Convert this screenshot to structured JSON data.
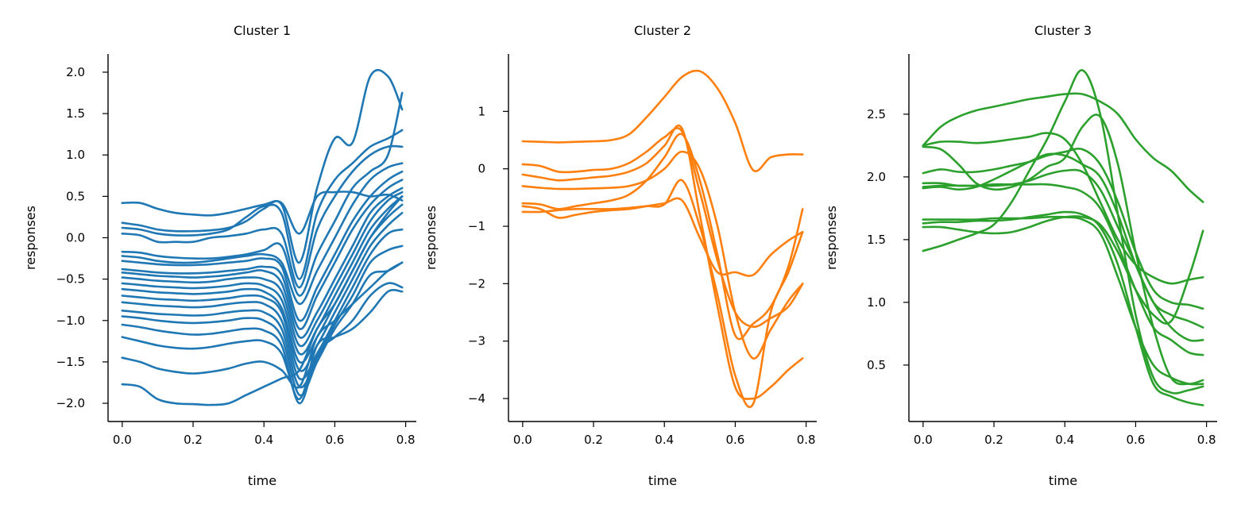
{
  "figure": {
    "panels": 3
  },
  "chart_data": [
    {
      "type": "line",
      "title": "Cluster 1",
      "xlabel": "time",
      "ylabel": "responses",
      "color": "#1f77b4",
      "xlim": [
        -0.04,
        0.83
      ],
      "ylim": [
        -2.22,
        2.22
      ],
      "xticks": [
        0.0,
        0.2,
        0.4,
        0.6,
        0.8
      ],
      "xtick_labels": [
        "0.0",
        "0.2",
        "0.4",
        "0.6",
        "0.8"
      ],
      "yticks": [
        -2.0,
        -1.5,
        -1.0,
        -0.5,
        0.0,
        0.5,
        1.0,
        1.5,
        2.0
      ],
      "ytick_labels": [
        "−2.0",
        "−1.5",
        "−1.0",
        "−0.5",
        "0.0",
        "0.5",
        "1.0",
        "1.5",
        "2.0"
      ],
      "x": [
        0.0,
        0.05,
        0.1,
        0.15,
        0.2,
        0.25,
        0.3,
        0.35,
        0.4,
        0.45,
        0.5,
        0.55,
        0.6,
        0.65,
        0.7,
        0.75,
        0.79
      ],
      "series": [
        {
          "values": [
            0.42,
            0.42,
            0.35,
            0.3,
            0.28,
            0.27,
            0.3,
            0.35,
            0.4,
            0.42,
            0.05,
            0.5,
            0.55,
            0.55,
            0.5,
            0.52,
            0.45
          ]
        },
        {
          "values": [
            0.18,
            0.15,
            0.1,
            0.08,
            0.08,
            0.09,
            0.12,
            0.2,
            0.35,
            0.4,
            -0.3,
            0.6,
            1.2,
            1.15,
            1.95,
            1.95,
            1.55
          ]
        },
        {
          "values": [
            0.12,
            0.1,
            0.05,
            0.03,
            0.03,
            0.05,
            0.1,
            0.25,
            0.38,
            0.3,
            -0.5,
            0.3,
            0.7,
            0.9,
            1.1,
            1.2,
            1.3
          ]
        },
        {
          "values": [
            0.05,
            0.03,
            -0.05,
            -0.05,
            -0.05,
            0.0,
            0.02,
            0.05,
            0.1,
            0.05,
            -0.6,
            0.1,
            0.5,
            0.8,
            1.0,
            1.1,
            1.1
          ]
        },
        {
          "values": [
            -0.17,
            -0.18,
            -0.22,
            -0.24,
            -0.25,
            -0.25,
            -0.23,
            -0.2,
            -0.15,
            -0.1,
            -0.7,
            -0.2,
            0.2,
            0.6,
            0.8,
            1.0,
            1.75
          ]
        },
        {
          "values": [
            -0.22,
            -0.24,
            -0.28,
            -0.3,
            -0.3,
            -0.28,
            -0.25,
            -0.22,
            -0.2,
            -0.3,
            -0.8,
            -0.4,
            0.0,
            0.4,
            0.7,
            0.85,
            0.9
          ]
        },
        {
          "values": [
            -0.28,
            -0.3,
            -0.32,
            -0.33,
            -0.33,
            -0.32,
            -0.3,
            -0.28,
            -0.25,
            -0.35,
            -1.0,
            -0.6,
            -0.2,
            0.2,
            0.5,
            0.7,
            0.8
          ]
        },
        {
          "values": [
            -0.38,
            -0.4,
            -0.42,
            -0.43,
            -0.43,
            -0.42,
            -0.4,
            -0.38,
            -0.35,
            -0.45,
            -1.1,
            -0.7,
            -0.3,
            0.1,
            0.4,
            0.6,
            0.7
          ]
        },
        {
          "values": [
            -0.42,
            -0.44,
            -0.46,
            -0.47,
            -0.48,
            -0.47,
            -0.45,
            -0.42,
            -0.4,
            -0.55,
            -1.2,
            -0.9,
            -0.5,
            -0.1,
            0.3,
            0.5,
            0.6
          ]
        },
        {
          "values": [
            -0.48,
            -0.5,
            -0.52,
            -0.53,
            -0.54,
            -0.53,
            -0.5,
            -0.48,
            -0.5,
            -0.65,
            -1.3,
            -1.0,
            -0.6,
            -0.2,
            0.2,
            0.45,
            0.55
          ]
        },
        {
          "values": [
            -0.55,
            -0.57,
            -0.59,
            -0.6,
            -0.61,
            -0.6,
            -0.58,
            -0.55,
            -0.58,
            -0.75,
            -1.4,
            -1.1,
            -0.7,
            -0.3,
            0.1,
            0.35,
            0.5
          ]
        },
        {
          "values": [
            -0.62,
            -0.64,
            -0.66,
            -0.67,
            -0.68,
            -0.67,
            -0.65,
            -0.62,
            -0.65,
            -0.85,
            -1.5,
            -1.2,
            -0.8,
            -0.4,
            0.0,
            0.25,
            0.4
          ]
        },
        {
          "values": [
            -0.7,
            -0.72,
            -0.74,
            -0.75,
            -0.76,
            -0.75,
            -0.73,
            -0.7,
            -0.72,
            -0.9,
            -1.6,
            -1.3,
            -0.9,
            -0.5,
            -0.1,
            0.15,
            0.3
          ]
        },
        {
          "values": [
            -0.78,
            -0.8,
            -0.82,
            -0.83,
            -0.84,
            -0.83,
            -0.8,
            -0.78,
            -0.8,
            -1.0,
            -1.7,
            -1.4,
            -1.0,
            -0.6,
            -0.2,
            0.05,
            0.1
          ]
        },
        {
          "values": [
            -0.88,
            -0.9,
            -0.92,
            -0.93,
            -0.94,
            -0.93,
            -0.9,
            -0.88,
            -0.9,
            -1.1,
            -1.8,
            -1.45,
            -1.05,
            -0.7,
            -0.3,
            -0.15,
            -0.1
          ]
        },
        {
          "values": [
            -0.95,
            -0.97,
            -1.0,
            -1.02,
            -1.03,
            -1.02,
            -1.0,
            -0.97,
            -1.0,
            -1.2,
            -1.9,
            -1.5,
            -1.1,
            -0.8,
            -0.45,
            -0.4,
            -0.3
          ]
        },
        {
          "values": [
            -1.05,
            -1.08,
            -1.12,
            -1.15,
            -1.17,
            -1.16,
            -1.13,
            -1.1,
            -1.12,
            -1.3,
            -2.0,
            -1.4,
            -1.2,
            -1.0,
            -0.7,
            -0.55,
            -0.6
          ]
        },
        {
          "values": [
            -1.2,
            -1.25,
            -1.3,
            -1.33,
            -1.34,
            -1.32,
            -1.28,
            -1.25,
            -1.25,
            -1.4,
            -1.95,
            -1.3,
            -1.2,
            -1.1,
            -0.9,
            -0.65,
            -0.65
          ]
        },
        {
          "values": [
            -1.45,
            -1.5,
            -1.58,
            -1.62,
            -1.64,
            -1.62,
            -1.58,
            -1.52,
            -1.5,
            -1.6,
            -1.8,
            -1.2,
            -1.0,
            -0.8,
            -0.6,
            -0.4,
            -0.3
          ]
        },
        {
          "values": [
            -1.77,
            -1.8,
            -1.95,
            -2.0,
            -2.01,
            -2.02,
            -2.0,
            -1.9,
            -1.8,
            -1.7,
            -1.6,
            -1.1,
            -0.8,
            -0.4,
            0.0,
            0.3,
            0.5
          ]
        }
      ]
    },
    {
      "type": "line",
      "title": "Cluster 2",
      "xlabel": "time",
      "ylabel": "responses",
      "color": "#ff7f0e",
      "xlim": [
        -0.04,
        0.83
      ],
      "ylim": [
        -4.4,
        2.0
      ],
      "xticks": [
        0.0,
        0.2,
        0.4,
        0.6,
        0.8
      ],
      "xtick_labels": [
        "0.0",
        "0.2",
        "0.4",
        "0.6",
        "0.8"
      ],
      "yticks": [
        -4,
        -3,
        -2,
        -1,
        0,
        1
      ],
      "ytick_labels": [
        "−4",
        "−3",
        "−2",
        "−1",
        "0",
        "1"
      ],
      "x": [
        0.0,
        0.05,
        0.1,
        0.15,
        0.2,
        0.25,
        0.3,
        0.35,
        0.4,
        0.45,
        0.5,
        0.55,
        0.6,
        0.65,
        0.7,
        0.75,
        0.79
      ],
      "series": [
        {
          "values": [
            0.48,
            0.47,
            0.46,
            0.47,
            0.48,
            0.5,
            0.6,
            0.9,
            1.25,
            1.6,
            1.7,
            1.4,
            0.8,
            -0.02,
            0.2,
            0.25,
            0.25
          ]
        },
        {
          "values": [
            0.08,
            0.05,
            -0.05,
            -0.05,
            -0.02,
            0.0,
            0.1,
            0.3,
            0.55,
            0.65,
            -0.4,
            -1.6,
            -2.5,
            -2.75,
            -2.6,
            -2.4,
            -2.0
          ]
        },
        {
          "values": [
            -0.1,
            -0.15,
            -0.2,
            -0.18,
            -0.15,
            -0.12,
            -0.05,
            0.1,
            0.4,
            0.7,
            -0.8,
            -2.4,
            -3.8,
            -4.0,
            -3.8,
            -3.5,
            -3.3
          ]
        },
        {
          "values": [
            -0.3,
            -0.33,
            -0.35,
            -0.35,
            -0.34,
            -0.33,
            -0.3,
            -0.2,
            0.0,
            0.3,
            0.0,
            -1.0,
            -2.5,
            -3.3,
            -2.8,
            -2.3,
            -2.0
          ]
        },
        {
          "values": [
            -0.6,
            -0.62,
            -0.7,
            -0.65,
            -0.6,
            -0.55,
            -0.45,
            -0.2,
            0.2,
            0.6,
            -0.2,
            -1.5,
            -2.9,
            -2.7,
            -2.4,
            -1.7,
            -0.7
          ]
        },
        {
          "values": [
            -0.75,
            -0.75,
            -0.72,
            -0.7,
            -0.7,
            -0.7,
            -0.68,
            -0.65,
            -0.62,
            -0.2,
            -1.0,
            -2.2,
            -3.6,
            -4.1,
            -2.5,
            -1.8,
            -1.1
          ]
        },
        {
          "values": [
            -0.65,
            -0.7,
            -0.85,
            -0.8,
            -0.75,
            -0.72,
            -0.7,
            -0.65,
            -0.6,
            -0.55,
            -1.2,
            -1.8,
            -1.8,
            -1.85,
            -1.5,
            -1.25,
            -1.1
          ]
        }
      ]
    },
    {
      "type": "line",
      "title": "Cluster 3",
      "xlabel": "time",
      "ylabel": "responses",
      "color": "#2ca02c",
      "xlim": [
        -0.04,
        0.83
      ],
      "ylim": [
        0.05,
        2.98
      ],
      "xticks": [
        0.0,
        0.2,
        0.4,
        0.6,
        0.8
      ],
      "xtick_labels": [
        "0.0",
        "0.2",
        "0.4",
        "0.6",
        "0.8"
      ],
      "yticks": [
        0.5,
        1.0,
        1.5,
        2.0,
        2.5
      ],
      "ytick_labels": [
        "0.5",
        "1.0",
        "1.5",
        "2.0",
        "2.5"
      ],
      "x": [
        0.0,
        0.05,
        0.1,
        0.15,
        0.2,
        0.25,
        0.3,
        0.35,
        0.4,
        0.45,
        0.5,
        0.55,
        0.6,
        0.65,
        0.7,
        0.75,
        0.79
      ],
      "series": [
        {
          "values": [
            2.25,
            2.4,
            2.48,
            2.53,
            2.56,
            2.59,
            2.62,
            2.64,
            2.66,
            2.66,
            2.6,
            2.5,
            2.3,
            2.15,
            2.05,
            1.9,
            1.8
          ]
        },
        {
          "values": [
            2.25,
            2.28,
            2.28,
            2.27,
            2.28,
            2.3,
            2.32,
            2.35,
            2.3,
            2.1,
            1.8,
            1.5,
            1.3,
            1.2,
            1.15,
            1.18,
            1.2
          ]
        },
        {
          "values": [
            2.03,
            2.06,
            2.04,
            2.04,
            2.06,
            2.09,
            2.12,
            2.17,
            2.2,
            2.22,
            2.1,
            1.8,
            1.4,
            1.1,
            1.0,
            0.98,
            0.95
          ]
        },
        {
          "values": [
            1.95,
            1.95,
            1.93,
            1.93,
            1.93,
            1.94,
            1.97,
            2.02,
            2.05,
            2.04,
            1.9,
            1.6,
            1.3,
            1.0,
            0.9,
            0.85,
            0.8
          ]
        },
        {
          "values": [
            1.92,
            1.93,
            1.93,
            1.93,
            1.94,
            1.94,
            1.94,
            1.94,
            1.92,
            1.88,
            1.75,
            1.45,
            1.1,
            0.8,
            0.7,
            0.6,
            0.58
          ]
        },
        {
          "values": [
            1.91,
            1.92,
            1.9,
            1.92,
            1.98,
            2.05,
            2.12,
            2.18,
            2.17,
            2.1,
            2.0,
            1.7,
            1.3,
            1.0,
            0.8,
            0.7,
            0.7
          ]
        },
        {
          "values": [
            2.24,
            2.22,
            2.1,
            1.95,
            1.9,
            1.92,
            1.98,
            2.08,
            2.15,
            2.4,
            2.48,
            2.1,
            1.4,
            0.8,
            0.4,
            0.35,
            0.38
          ]
        },
        {
          "values": [
            1.41,
            1.45,
            1.5,
            1.55,
            1.62,
            1.8,
            2.05,
            2.3,
            2.6,
            2.85,
            2.5,
            1.7,
            0.9,
            0.4,
            0.28,
            0.3,
            0.33
          ]
        },
        {
          "values": [
            1.66,
            1.66,
            1.66,
            1.66,
            1.67,
            1.67,
            1.67,
            1.68,
            1.68,
            1.66,
            1.55,
            1.2,
            0.8,
            0.5,
            0.4,
            0.35,
            0.35
          ]
        },
        {
          "values": [
            1.63,
            1.64,
            1.64,
            1.65,
            1.65,
            1.66,
            1.68,
            1.7,
            1.72,
            1.7,
            1.6,
            1.3,
            0.8,
            0.35,
            0.25,
            0.2,
            0.18
          ]
        },
        {
          "values": [
            1.6,
            1.6,
            1.58,
            1.56,
            1.55,
            1.56,
            1.6,
            1.65,
            1.68,
            1.68,
            1.62,
            1.4,
            1.1,
            0.9,
            0.85,
            1.2,
            1.57
          ]
        }
      ]
    }
  ]
}
